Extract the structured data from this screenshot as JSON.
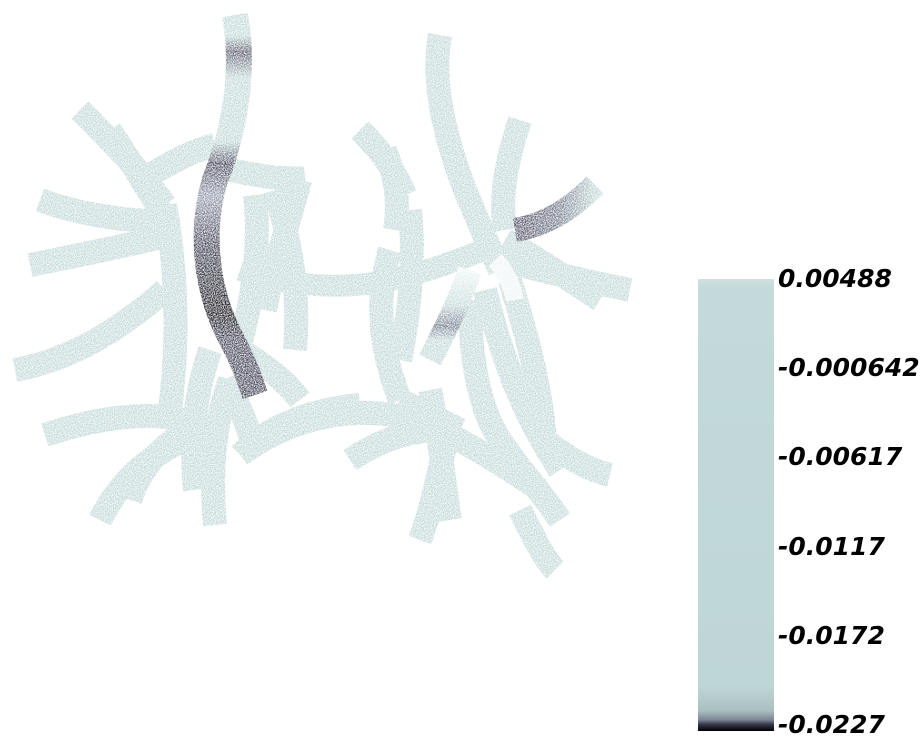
{
  "colormap": {
    "light": "#bfd6d6",
    "highlight": "#eef6f6",
    "mid": "#8e97a8",
    "dark": "#3b3b4f",
    "darkest": "#0a0a12"
  },
  "colorbar": {
    "max": 0.00488,
    "min": -0.0227,
    "ticks": [
      "0.00488",
      "-0.000642",
      "-0.00617",
      "-0.0117",
      "-0.0172",
      "-0.0227"
    ]
  }
}
